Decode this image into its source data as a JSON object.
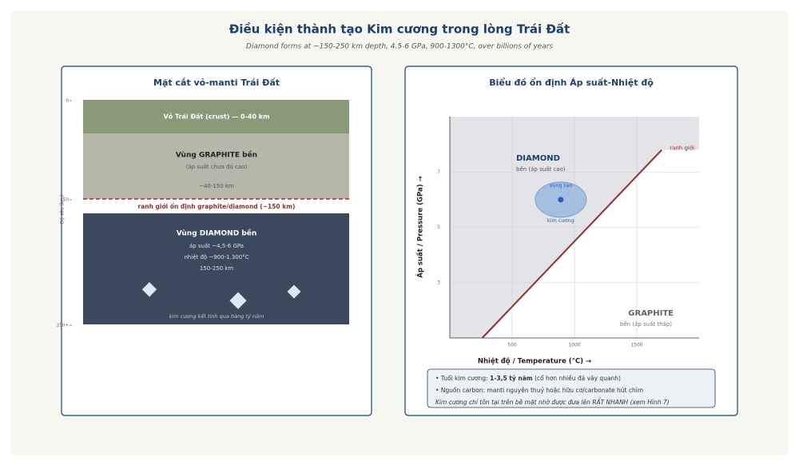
{
  "header": {
    "title": "Điều kiện thành tạo Kim cương trong lòng Trái Đất",
    "subtitle": "Diamond forms at ~150-250 km depth, 4.5-6 GPa, 900-1300°C, over billions of years"
  },
  "cross_section": {
    "title": "Mặt cắt vỏ-manti Trái Đất",
    "axis_label": "Độ sâu (km)",
    "depth_ticks": [
      {
        "value": 0,
        "label": "0"
      },
      {
        "value": 150,
        "label": "150"
      },
      {
        "value": 250,
        "label": "250+"
      }
    ],
    "crust": "Vỏ Trái Đất (crust) — 0-40 km",
    "graphite_zone": {
      "title": "Vùng GRAPHITE bền",
      "note": "(áp suất chưa đủ cao)",
      "depth": "~40-150 km"
    },
    "boundary": "ranh giới ổn định graphite/diamond (~150 km)",
    "diamond_zone": {
      "title": "Vùng DIAMOND bền",
      "lines": [
        "áp suất ~4,5-6 GPa",
        "nhiệt độ ~900-1.300°C",
        "150-250 km"
      ],
      "caption": "kim cương kết tinh qua hàng tỷ năm"
    }
  },
  "phase_chart": {
    "type": "line",
    "title": "Biểu đồ ổn định Áp suất-Nhiệt độ",
    "x_label": "Nhiệt độ / Temperature (°C) →",
    "y_label": "Áp suất / Pressure (GPa) →",
    "xlim": [
      0,
      2000
    ],
    "ylim": [
      1,
      9
    ],
    "xticks": [
      500,
      1000,
      1500
    ],
    "yticks": [
      3,
      5,
      7
    ],
    "grid": true,
    "boundary": {
      "name": "ranh giới",
      "color": "#9b2c2c",
      "x": [
        260,
        1700
      ],
      "values": [
        1,
        7.8
      ]
    },
    "diamond_label": "DIAMOND",
    "diamond_note": "bền (áp suất cao)",
    "graphite_label": "GRAPHITE",
    "graphite_note": "bền (áp suất thấp)",
    "formation": {
      "x": 890,
      "y": 6,
      "label_top": "vùng tạo",
      "label_bottom": "kim cương"
    }
  },
  "notes": {
    "age_prefix": "• Tuổi kim cương: ",
    "age_value": "1-3,5 tỷ năm",
    "age_suffix": " (cổ hơn nhiều đá vây quanh)",
    "carbon": "• Nguồn carbon: manti nguyên thuỷ hoặc hữu cơ/carbonate hút chìm",
    "surface": "Kim cương chỉ tồn tại trên bề mặt nhờ được đưa lên RẤT NHANH (xem Hình 7)"
  }
}
